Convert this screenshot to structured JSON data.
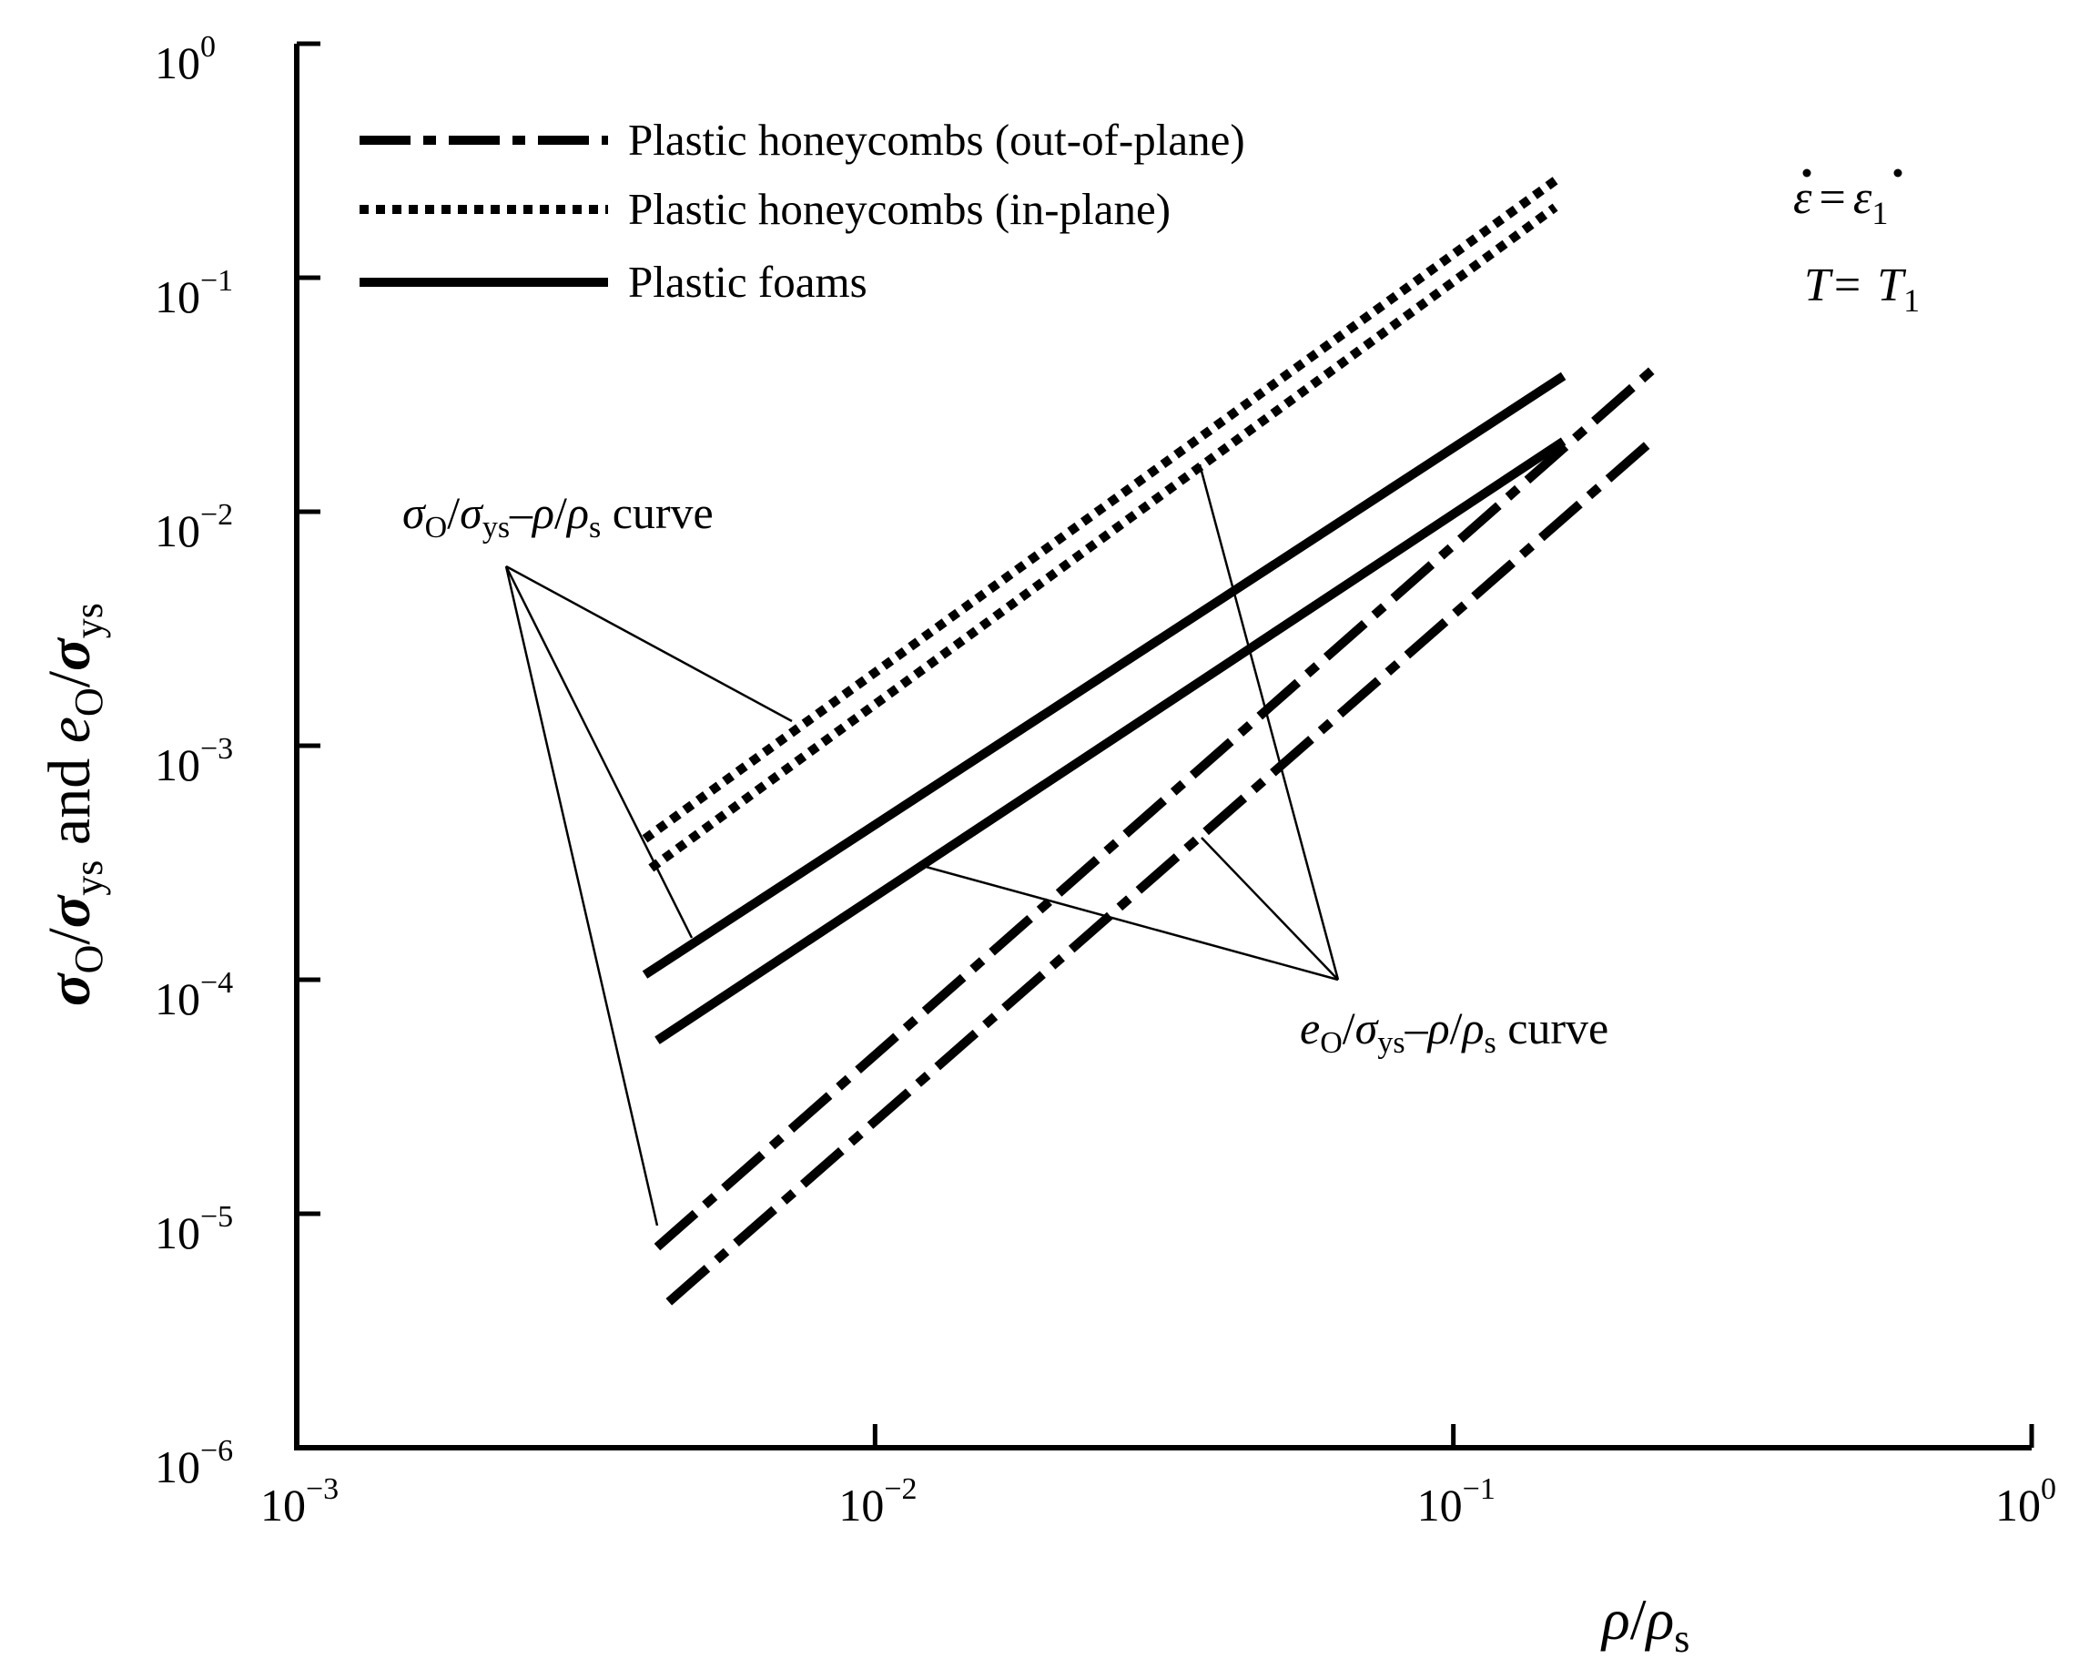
{
  "chart_data": {
    "type": "line",
    "x_scale": "log",
    "y_scale": "log",
    "xlim": [
      0.001,
      1
    ],
    "ylim": [
      1e-06,
      1
    ],
    "grid": false,
    "legend_position": "top-left",
    "x_ticks": [
      {
        "base": "10",
        "exp": "−3"
      },
      {
        "base": "10",
        "exp": "−2"
      },
      {
        "base": "10",
        "exp": "−1"
      },
      {
        "base": "10",
        "exp": "0"
      }
    ],
    "y_ticks": [
      {
        "base": "10",
        "exp": "−6"
      },
      {
        "base": "10",
        "exp": "−5"
      },
      {
        "base": "10",
        "exp": "−4"
      },
      {
        "base": "10",
        "exp": "−3"
      },
      {
        "base": "10",
        "exp": "−2"
      },
      {
        "base": "10",
        "exp": "−1"
      },
      {
        "base": "10",
        "exp": "0"
      }
    ],
    "xlabel": {
      "a": "ρ",
      "slash": "/",
      "b": "ρ",
      "b_sub": "s"
    },
    "ylabel": {
      "a": "σ",
      "a_sub": "O",
      "slash1": "/",
      "b": "σ",
      "b_sub": "ys",
      "mid": " and ",
      "c": "e",
      "c_sub": "O",
      "slash2": "/",
      "d": "σ",
      "d_sub": "ys"
    },
    "legend": [
      {
        "label": "Plastic honeycombs (out-of-plane)",
        "style": "dashdot"
      },
      {
        "label": "Plastic honeycombs (in-plane)",
        "style": "dotted"
      },
      {
        "label": "Plastic foams",
        "style": "solid"
      }
    ],
    "conditions": {
      "rate_lhs": "ε",
      "rate_eq": "=",
      "rate_rhs": "ε",
      "rate_sub": "1",
      "temp_lhs": "T",
      "temp_eq": "=",
      "temp_rhs": "T",
      "temp_sub": "1"
    },
    "annotations": {
      "sigma_curve": {
        "a": "σ",
        "a_sub": "O",
        "s1": "/",
        "b": "σ",
        "b_sub": "ys",
        "dash": "–",
        "c": "ρ",
        "s2": "/",
        "d": "ρ",
        "d_sub": "s",
        "tail": " curve"
      },
      "e_curve": {
        "a": "e",
        "a_sub": "O",
        "s1": "/",
        "b": "σ",
        "b_sub": "ys",
        "dash": "–",
        "c": "ρ",
        "s2": "/",
        "d": "ρ",
        "d_sub": "s",
        "tail": " curve"
      }
    },
    "series": [
      {
        "group": "Plastic honeycombs (in-plane)",
        "curve": "sigma_O",
        "style": "dotted",
        "x": [
          0.004,
          0.15
        ],
        "y": [
          0.0004,
          0.26
        ]
      },
      {
        "group": "Plastic honeycombs (in-plane)",
        "curve": "e_O",
        "style": "dotted",
        "x": [
          0.0041,
          0.15
        ],
        "y": [
          0.0003,
          0.2
        ]
      },
      {
        "group": "Plastic foams",
        "curve": "sigma_O",
        "style": "solid",
        "x": [
          0.004,
          0.155
        ],
        "y": [
          0.000105,
          0.038
        ]
      },
      {
        "group": "Plastic foams",
        "curve": "e_O",
        "style": "solid",
        "x": [
          0.0042,
          0.155
        ],
        "y": [
          5.5e-05,
          0.02
        ]
      },
      {
        "group": "Plastic honeycombs (out-of-plane)",
        "curve": "sigma_O",
        "style": "dashdot",
        "x": [
          0.0042,
          0.22
        ],
        "y": [
          7.2e-06,
          0.04
        ]
      },
      {
        "group": "Plastic honeycombs (out-of-plane)",
        "curve": "e_O",
        "style": "dashdot",
        "x": [
          0.0044,
          0.22
        ],
        "y": [
          4.2e-06,
          0.02
        ]
      }
    ]
  }
}
